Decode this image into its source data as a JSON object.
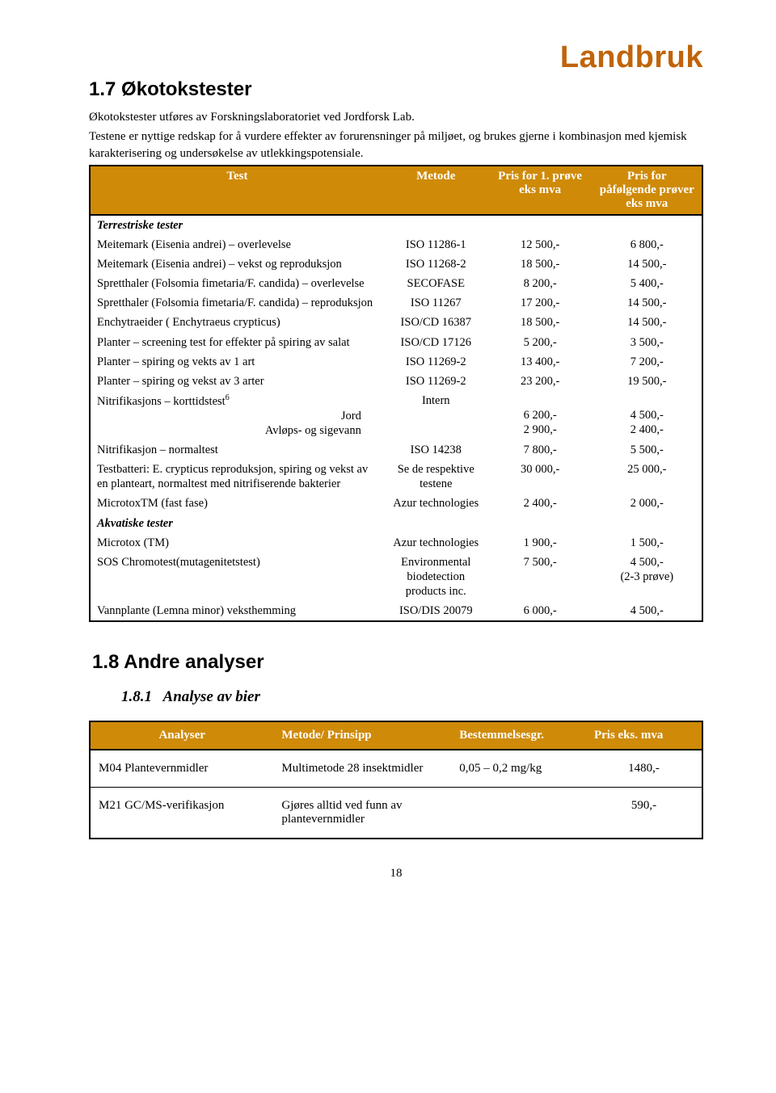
{
  "brand": "Landbruk",
  "section17": {
    "number": "1.7",
    "title": "Økotokstester",
    "intro1": "Økotokstester utføres av Forskningslaboratoriet ved Jordforsk Lab.",
    "intro2": "Testene er nyttige redskap for å vurdere effekter av forurensninger på miljøet, og brukes gjerne i kombinasjon med kjemisk karakterisering og undersøkelse av utlekkingspotensiale."
  },
  "table1": {
    "headers": {
      "c1": "Test",
      "c2": "Metode",
      "c3": "Pris for 1. prøve eks mva",
      "c4": "Pris for påfølgende prøver eks mva"
    },
    "sub1": "Terrestriske tester",
    "rows1": [
      {
        "t": "Meitemark (Eisenia andrei) – overlevelse",
        "m": "ISO 11286-1",
        "p1": "12 500,-",
        "p2": "6 800,-"
      },
      {
        "t": "Meitemark (Eisenia andrei) – vekst og reproduksjon",
        "m": "ISO 11268-2",
        "p1": "18 500,-",
        "p2": "14 500,-"
      },
      {
        "t": "Spretthaler (Folsomia fimetaria/F. candida) – overlevelse",
        "m": "SECOFASE",
        "p1": "8 200,-",
        "p2": "5 400,-"
      },
      {
        "t": "Spretthaler (Folsomia fimetaria/F. candida) – reproduksjon",
        "m": "ISO 11267",
        "p1": "17 200,-",
        "p2": "14 500,-"
      },
      {
        "t": "Enchytraeider ( Enchytraeus crypticus)",
        "m": "ISO/CD 16387",
        "p1": "18 500,-",
        "p2": "14 500,-"
      },
      {
        "t": "Planter – screening test for effekter på spiring av salat",
        "m": "ISO/CD 17126",
        "p1": "5 200,-",
        "p2": "3 500,-"
      },
      {
        "t": "Planter – spiring og vekts av 1 art",
        "m": "ISO 11269-2",
        "p1": "13 400,-",
        "p2": "7 200,-"
      },
      {
        "t": "Planter – spiring og vekst av 3 arter",
        "m": "ISO 11269-2",
        "p1": "23 200,-",
        "p2": "19 500,-"
      }
    ],
    "nitri": {
      "t": "Nitrifikasjons – korttidstest",
      "sup": "6",
      "m": "Intern",
      "line1": {
        "label": "Jord",
        "p1": "6 200,-",
        "p2": "4 500,-"
      },
      "line2": {
        "label": "Avløps- og sigevann",
        "p1": "2 900,-",
        "p2": "2 400,-"
      }
    },
    "rows2": [
      {
        "t": "Nitrifikasjon – normaltest",
        "m": "ISO 14238",
        "p1": "7 800,-",
        "p2": "5 500,-"
      },
      {
        "t": "Testbatteri: E. crypticus reproduksjon, spiring og vekst av en planteart, normaltest med nitrifiserende bakterier",
        "m": "Se de respektive testene",
        "p1": "30 000,-",
        "p2": "25 000,-"
      },
      {
        "t": "MicrotoxTM (fast fase)",
        "m": "Azur technologies",
        "p1": "2 400,-",
        "p2": "2 000,-"
      }
    ],
    "sub2": "Akvatiske tester",
    "rows3": [
      {
        "t": "Microtox (TM)",
        "m": "Azur technologies",
        "p1": "1 900,-",
        "p2": "1 500,-"
      },
      {
        "t": "SOS Chromotest(mutagenitetstest)",
        "m": "Environmental biodetection products inc.",
        "p1": "7 500,-",
        "p2": "4 500,-\n(2-3 prøve)"
      },
      {
        "t": "Vannplante (Lemna minor) veksthemming",
        "m": "ISO/DIS 20079",
        "p1": "6 000,-",
        "p2": "4 500,-"
      }
    ]
  },
  "section18": {
    "number": "1.8",
    "title": "Andre analyser",
    "sub_number": "1.8.1",
    "sub_title": "Analyse av bier"
  },
  "table2": {
    "headers": {
      "c1": "Analyser",
      "c2": "Metode/ Prinsipp",
      "c3": "Bestemmelsesgr.",
      "c4": "Pris eks. mva"
    },
    "rows": [
      {
        "a": "M04 Plantevernmidler",
        "m": "Multimetode 28 insektmidler",
        "b": "0,05 – 0,2 mg/kg",
        "p": "1480,-"
      },
      {
        "a": "M21 GC/MS-verifikasjon",
        "m": "Gjøres alltid ved funn av plantevernmidler",
        "b": "",
        "p": "590,-"
      }
    ]
  },
  "pageNumber": "18"
}
